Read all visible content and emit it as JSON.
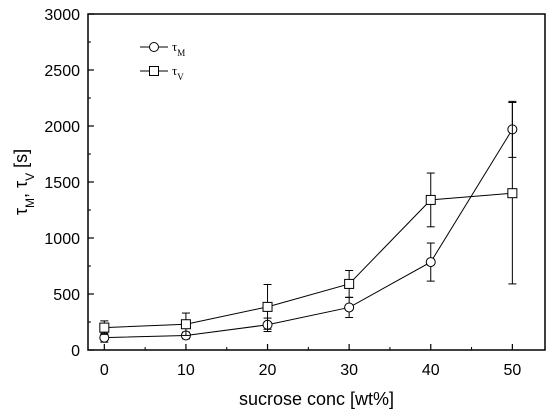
{
  "chart_data": {
    "type": "line",
    "xlabel": "sucrose conc [wt%]",
    "ylabel_parts": [
      "τ",
      "M",
      ", τ",
      "V",
      " [s]"
    ],
    "xlim": [
      -2,
      54
    ],
    "ylim": [
      0,
      3000
    ],
    "x_ticks": [
      0,
      10,
      20,
      30,
      40,
      50
    ],
    "y_ticks": [
      0,
      500,
      1000,
      1500,
      2000,
      2500,
      3000
    ],
    "legend_position": "top-left",
    "grid": false,
    "series": [
      {
        "name": "τ_M",
        "label_main": "τ",
        "label_sub": "M",
        "marker": "circle",
        "x": [
          0,
          10,
          20,
          30,
          40,
          50
        ],
        "y": [
          110,
          130,
          225,
          380,
          785,
          1970
        ],
        "err": [
          40,
          30,
          60,
          90,
          170,
          250
        ]
      },
      {
        "name": "τ_V",
        "label_main": "τ",
        "label_sub": "V",
        "marker": "square",
        "x": [
          0,
          10,
          20,
          30,
          40,
          50
        ],
        "y": [
          200,
          230,
          385,
          590,
          1340,
          1400
        ],
        "err": [
          60,
          100,
          200,
          120,
          240,
          810
        ]
      }
    ]
  }
}
